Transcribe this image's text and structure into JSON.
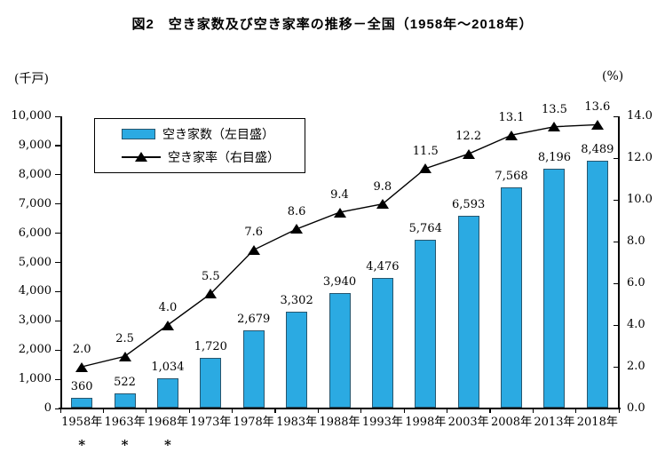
{
  "title": "図2　空き家数及び空き家率の推移－全国（1958年～2018年）",
  "left_axis_unit": "(千戸)",
  "right_axis_unit": "(%)",
  "colors": {
    "bar_fill": "#2BAAE2",
    "bar_border": "#27566E",
    "line": "#000000",
    "marker": "#000000",
    "axis": "#000000",
    "text": "#000000"
  },
  "legend": {
    "items": [
      {
        "label": "空き家数（左目盛）",
        "swatch": "bar"
      },
      {
        "label": "空き家率（右目盛）",
        "swatch": "line-triangle"
      }
    ]
  },
  "chart_data": {
    "type": "bar",
    "title": "図2　空き家数及び空き家率の推移－全国（1958年～2018年）",
    "categories": [
      "1958年",
      "1963年",
      "1968年",
      "1973年",
      "1978年",
      "1983年",
      "1988年",
      "1993年",
      "1998年",
      "2003年",
      "2008年",
      "2013年",
      "2018年"
    ],
    "footnote_marks": [
      "*",
      "*",
      "*",
      "",
      "",
      "",
      "",
      "",
      "",
      "",
      "",
      "",
      ""
    ],
    "series": [
      {
        "name": "空き家数（左目盛）",
        "type": "bar",
        "axis": "left",
        "values": [
          360,
          522,
          1034,
          1720,
          2679,
          3302,
          3940,
          4476,
          5764,
          6593,
          7568,
          8196,
          8489
        ],
        "labels": [
          "360",
          "522",
          "1,034",
          "1,720",
          "2,679",
          "3,302",
          "3,940",
          "4,476",
          "5,764",
          "6,593",
          "7,568",
          "8,196",
          "8,489"
        ]
      },
      {
        "name": "空き家率（右目盛）",
        "type": "line",
        "axis": "right",
        "values": [
          2.0,
          2.5,
          4.0,
          5.5,
          7.6,
          8.6,
          9.4,
          9.8,
          11.5,
          12.2,
          13.1,
          13.5,
          13.6
        ],
        "labels": [
          "2.0",
          "2.5",
          "4.0",
          "5.5",
          "7.6",
          "8.6",
          "9.4",
          "9.8",
          "11.5",
          "12.2",
          "13.1",
          "13.5",
          "13.6"
        ]
      }
    ],
    "left_axis": {
      "label": "(千戸)",
      "min": 0,
      "max": 10000,
      "step": 1000,
      "tick_labels": [
        "0",
        "1,000",
        "2,000",
        "3,000",
        "4,000",
        "5,000",
        "6,000",
        "7,000",
        "8,000",
        "9,000",
        "10,000"
      ]
    },
    "right_axis": {
      "label": "(%)",
      "min": 0,
      "max": 14,
      "step": 2,
      "tick_labels": [
        "0.0",
        "2.0",
        "4.0",
        "6.0",
        "8.0",
        "10.0",
        "12.0",
        "14.0"
      ]
    },
    "grid": false,
    "legend_position": "top-left-inside"
  }
}
